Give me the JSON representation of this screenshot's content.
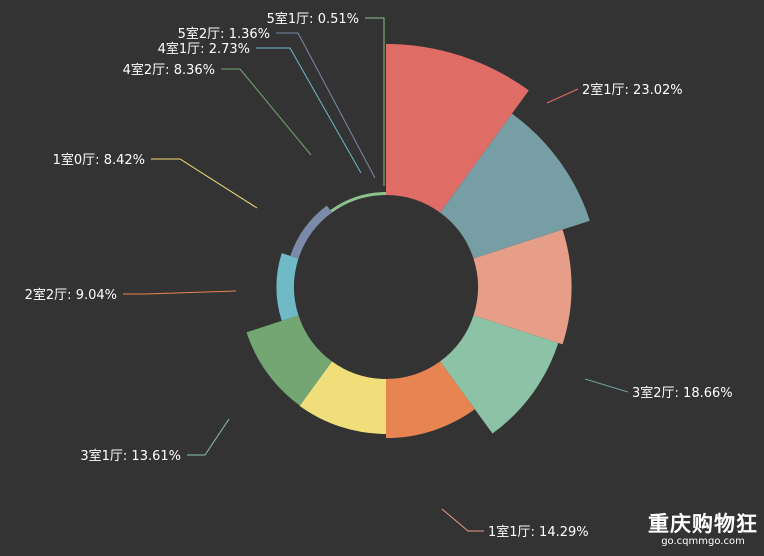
{
  "chart_data": {
    "type": "pie",
    "variant": "rose-donut",
    "legend": "none",
    "labels": [
      "2室1厅",
      "3室2厅",
      "1室1厅",
      "3室1厅",
      "2室2厅",
      "1室0厅",
      "4室2厅",
      "4室1厅",
      "5室2厅",
      "5室1厅"
    ],
    "values": [
      23.02,
      18.66,
      14.29,
      13.61,
      9.04,
      8.42,
      8.36,
      2.73,
      1.36,
      0.51
    ],
    "value_unit": "%",
    "colors": [
      "#e06c66",
      "#769ea4",
      "#e79e88",
      "#8cc2a6",
      "#e88452",
      "#f0de7a",
      "#73a673",
      "#6fbac6",
      "#7a8aa8",
      "#8cc28c"
    ],
    "label_texts": [
      "2室1厅: 23.02%",
      "3室2厅: 18.66%",
      "1室1厅: 14.29%",
      "3室1厅: 13.61%",
      "2室2厅: 9.04%",
      "1室0厅: 8.42%",
      "4室2厅: 8.36%",
      "4室1厅: 2.73%",
      "5室2厅: 1.36%",
      "5室1厅: 0.51%"
    ]
  },
  "watermark": {
    "title": "重庆购物狂",
    "subtitle": "go.cqmmgo.com"
  },
  "colors": {
    "background": "#333333",
    "label_text": "#ffffff"
  }
}
